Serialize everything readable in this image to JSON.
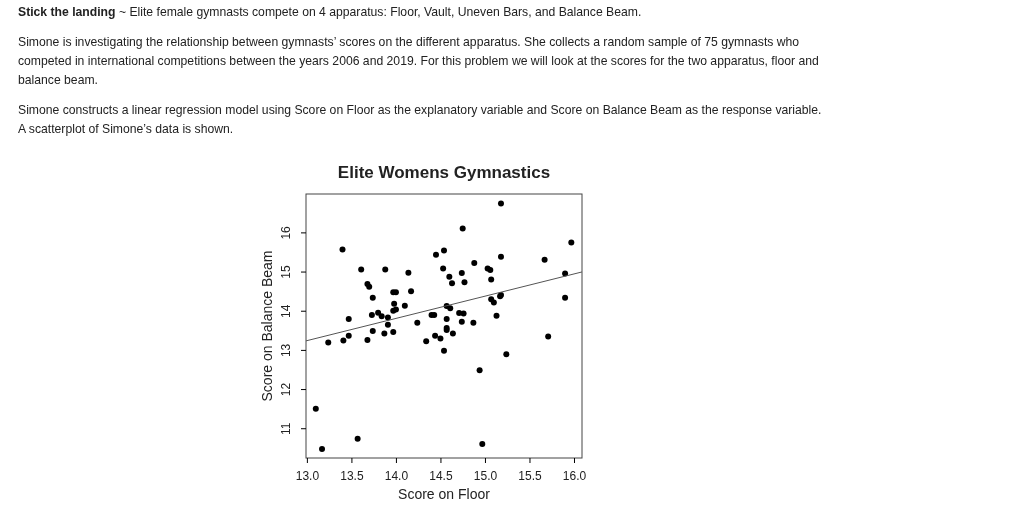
{
  "chart_data": {
    "type": "scatter",
    "title": "Elite Womens Gymnastics",
    "xlabel": "Score on Floor",
    "ylabel": "Score on Balance Beam",
    "annotations": [
      "Stick the landing",
      "~ Elite female gymnasts compete on 4 apparatus: Floor, Vault, Uneven Bars, and Balance Beam.",
      "Simone is investigating the relationship between gymnasts’ scores on the different apparatus. She collects a random sample of 75 gymnasts who competed in international competitions between the years 2006 and 2019. For this problem we will look at the scores for the two apparatus, floor and balance beam.",
      "Simone constructs a linear regression model using Score on Floor as the explanatory variable and Score on Balance Beam as the response variable. A scatterplot of Simone’s data is shown."
    ],
    "xlim": [
      12.99,
      16.09
    ],
    "ylim": [
      10.24,
      16.98
    ],
    "xticks": [
      {
        "value": 13,
        "label": "13.0"
      },
      13.5,
      {
        "value": 14,
        "label": "14.0"
      },
      14.5,
      {
        "value": 15,
        "label": "15.0"
      },
      15.5,
      {
        "value": 16,
        "label": "16.0"
      }
    ],
    "yticks": [
      11,
      12,
      13,
      14,
      15,
      16
    ],
    "grid": false,
    "series": [
      {
        "marker": "circle",
        "color": "#000000",
        "x": [
          13.4,
          13.61,
          13.88,
          13.68,
          13.7,
          13.74,
          14.14,
          14.17,
          13.97,
          14.0,
          13.98,
          14.1,
          13.97,
          14.0,
          14.45,
          14.54,
          14.53,
          14.6,
          14.63,
          14.74,
          14.77,
          14.75,
          15.18,
          14.88,
          15.03,
          15.06,
          15.07,
          15.18,
          15.07,
          15.1,
          15.17,
          15.18,
          15.67,
          15.97,
          15.9,
          15.9,
          14.57,
          14.61,
          13.8,
          13.73,
          13.84,
          13.91,
          14.4,
          14.43,
          14.71,
          14.76,
          15.13,
          13.47,
          13.91,
          13.74,
          13.47,
          13.41,
          13.24,
          13.68,
          13.87,
          13.97,
          14.24,
          14.57,
          14.57,
          14.57,
          14.74,
          14.87,
          14.64,
          14.44,
          14.34,
          14.5,
          14.54,
          15.24,
          15.71,
          14.94,
          13.1,
          13.17,
          13.57,
          14.97
        ],
        "values": [
          15.56,
          15.05,
          15.05,
          14.68,
          14.61,
          14.33,
          14.97,
          14.5,
          14.47,
          14.47,
          14.18,
          14.13,
          14.0,
          14.03,
          15.43,
          15.54,
          15.08,
          14.87,
          14.7,
          14.96,
          14.73,
          16.1,
          16.74,
          15.22,
          15.08,
          15.04,
          14.8,
          15.38,
          14.29,
          14.21,
          14.37,
          14.4,
          15.3,
          15.74,
          14.95,
          14.33,
          14.12,
          14.06,
          13.95,
          13.89,
          13.86,
          13.83,
          13.89,
          13.89,
          13.94,
          13.93,
          13.87,
          13.79,
          13.64,
          13.48,
          13.36,
          13.24,
          13.19,
          13.25,
          13.42,
          13.46,
          13.69,
          13.79,
          13.56,
          13.51,
          13.72,
          13.69,
          13.42,
          13.36,
          13.22,
          13.29,
          12.98,
          12.89,
          13.34,
          12.48,
          11.5,
          10.47,
          10.73,
          10.6
        ]
      },
      {
        "type": "line",
        "color": "#555555",
        "x": [
          12.99,
          16.09
        ],
        "values": [
          13.23,
          14.99
        ]
      }
    ]
  }
}
